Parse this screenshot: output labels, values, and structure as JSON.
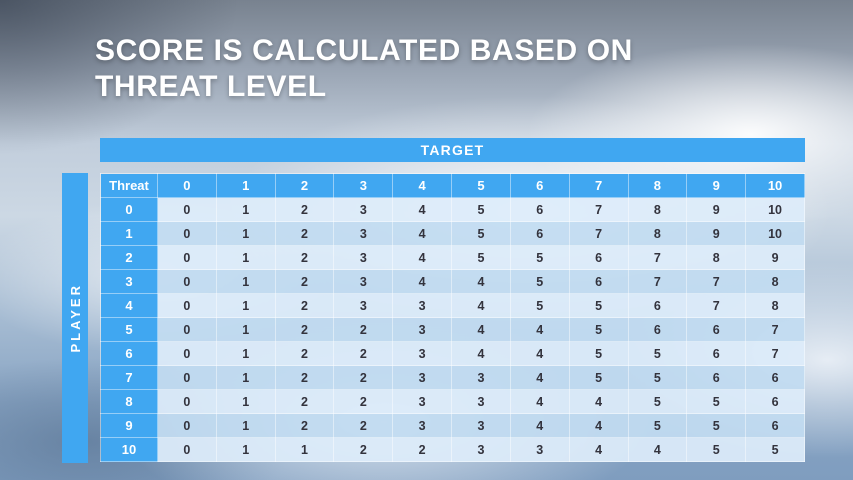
{
  "title": "SCORE IS CALCULATED BASED ON THREAT LEVEL",
  "matrix": {
    "target_label": "TARGET",
    "player_label": "PLAYER",
    "corner_label": "Threat",
    "column_headers": [
      "0",
      "1",
      "2",
      "3",
      "4",
      "5",
      "6",
      "7",
      "8",
      "9",
      "10"
    ],
    "row_headers": [
      "0",
      "1",
      "2",
      "3",
      "4",
      "5",
      "6",
      "7",
      "8",
      "9",
      "10"
    ],
    "rows": [
      [
        0,
        1,
        2,
        3,
        4,
        5,
        6,
        7,
        8,
        9,
        10
      ],
      [
        0,
        1,
        2,
        3,
        4,
        5,
        6,
        7,
        8,
        9,
        10
      ],
      [
        0,
        1,
        2,
        3,
        4,
        5,
        5,
        6,
        7,
        8,
        9
      ],
      [
        0,
        1,
        2,
        3,
        4,
        4,
        5,
        6,
        7,
        7,
        8
      ],
      [
        0,
        1,
        2,
        3,
        3,
        4,
        5,
        5,
        6,
        7,
        8
      ],
      [
        0,
        1,
        2,
        2,
        3,
        4,
        4,
        5,
        6,
        6,
        7
      ],
      [
        0,
        1,
        2,
        2,
        3,
        4,
        4,
        5,
        5,
        6,
        7
      ],
      [
        0,
        1,
        2,
        2,
        3,
        3,
        4,
        5,
        5,
        6,
        6
      ],
      [
        0,
        1,
        2,
        2,
        3,
        3,
        4,
        4,
        5,
        5,
        6
      ],
      [
        0,
        1,
        2,
        2,
        3,
        3,
        4,
        4,
        5,
        5,
        6
      ],
      [
        0,
        1,
        1,
        2,
        2,
        3,
        3,
        4,
        4,
        5,
        5
      ]
    ]
  },
  "colors": {
    "accent_blue": "#40a7f1",
    "band_light": "rgba(221,236,250,0.93)",
    "band_dark": "rgba(194,219,241,0.93)",
    "title_text": "#ffffff",
    "cell_text": "#33333d"
  }
}
